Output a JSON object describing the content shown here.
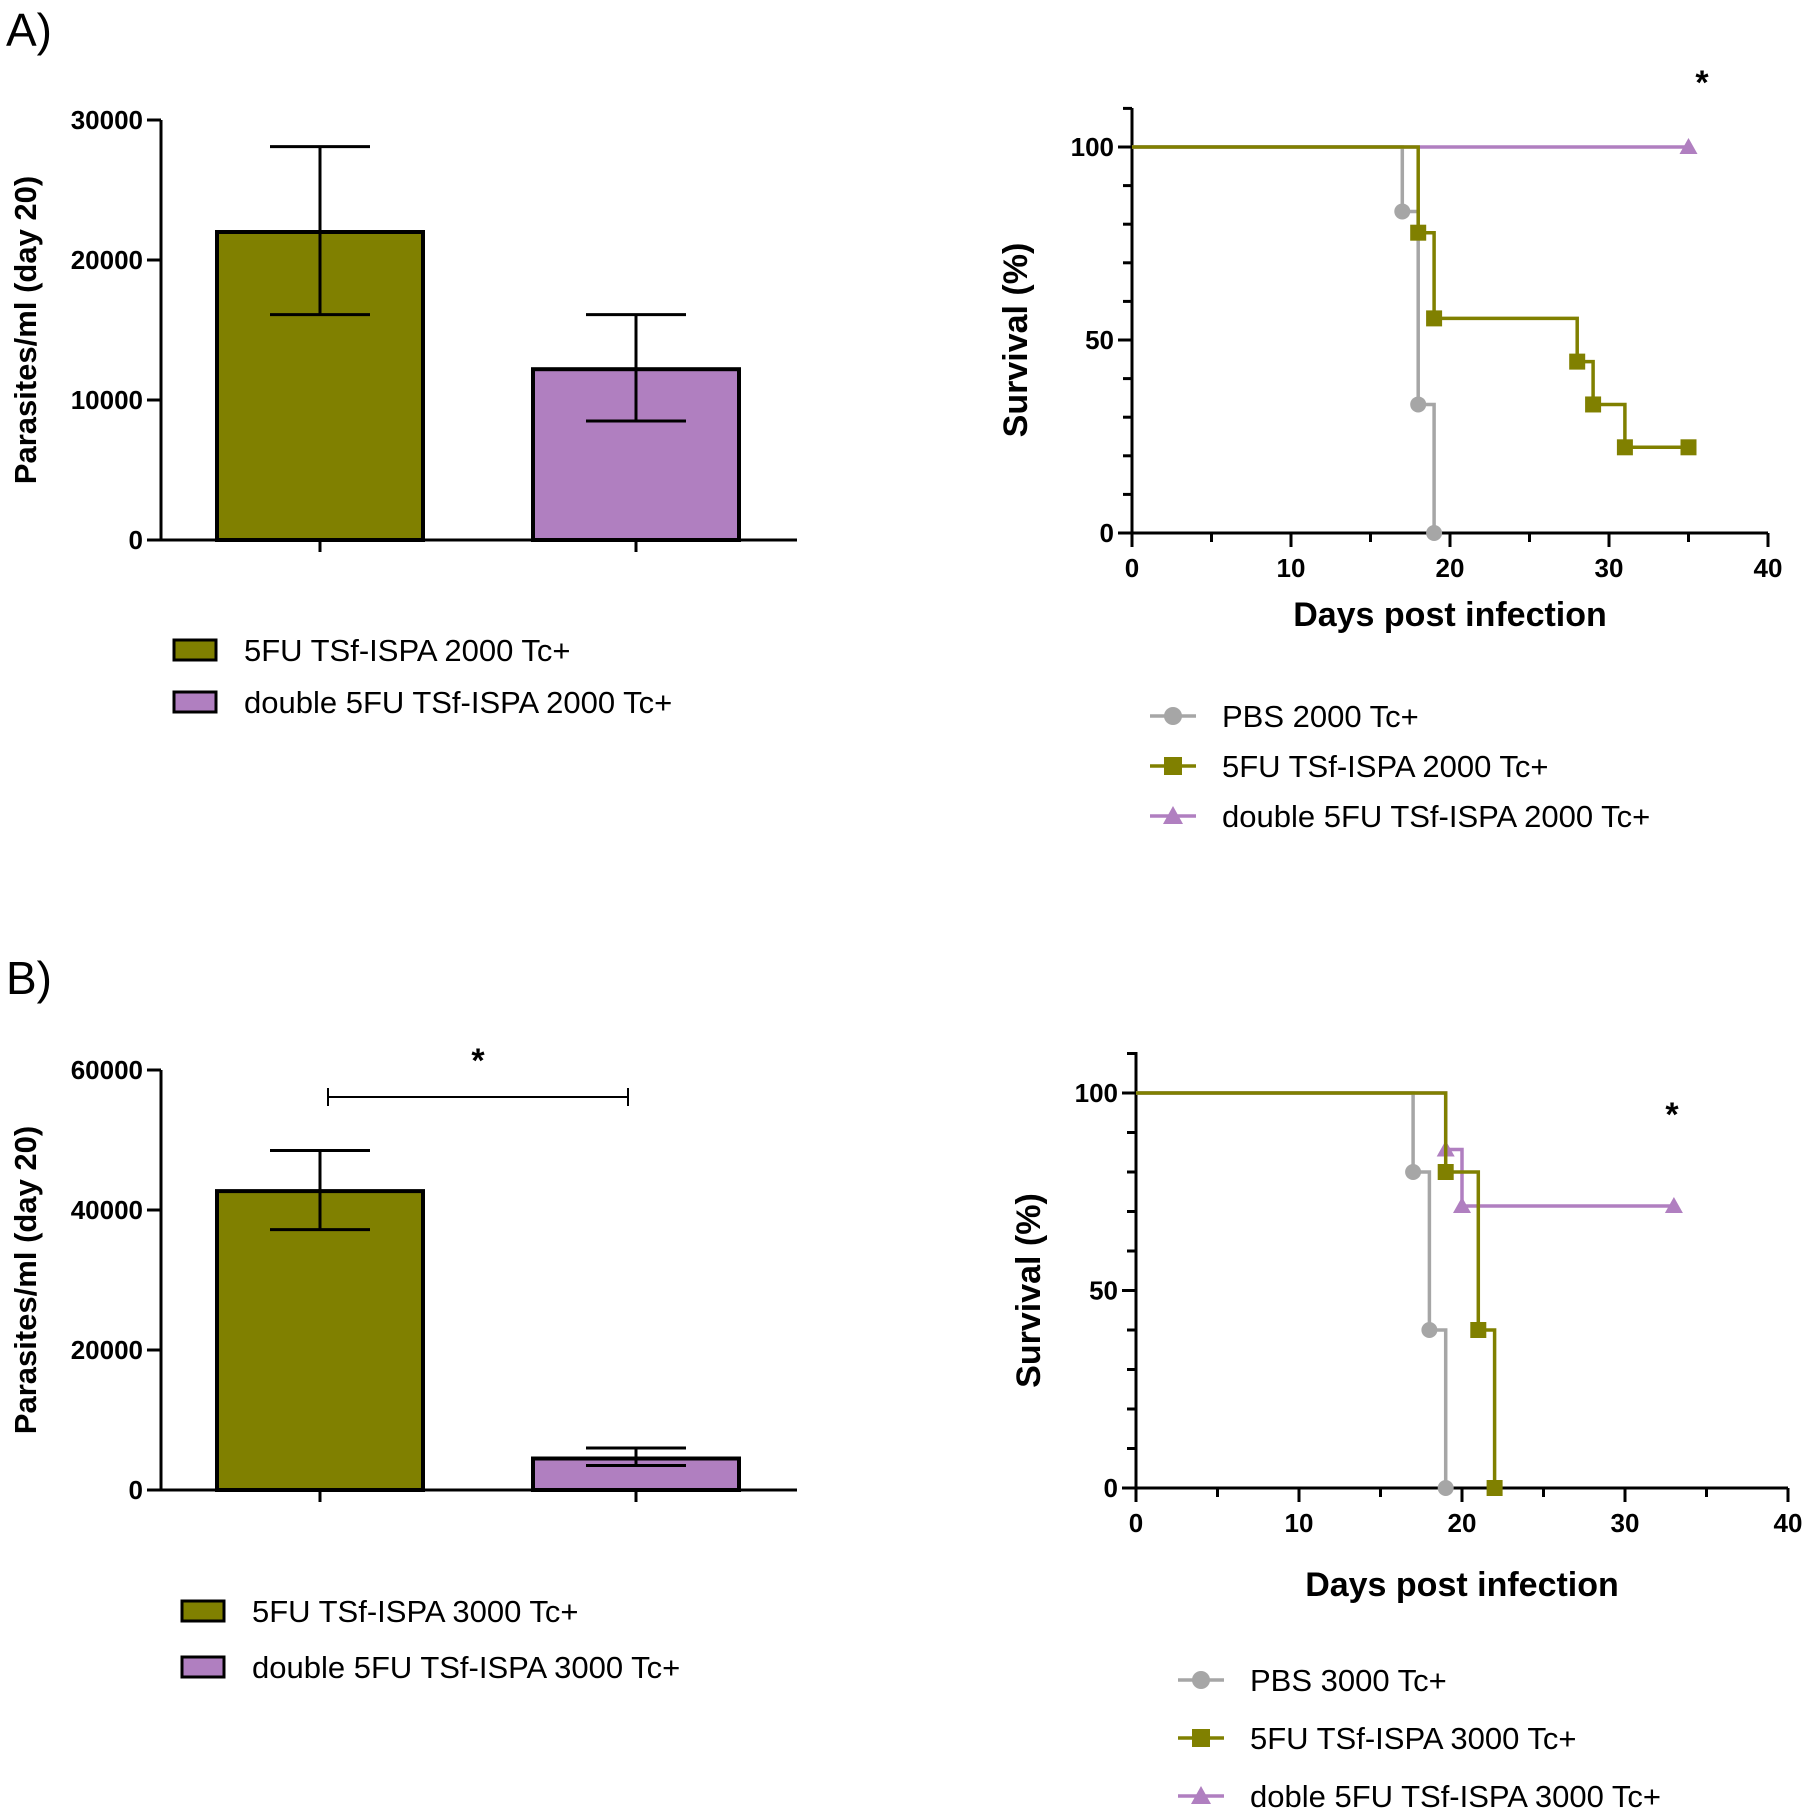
{
  "panel_labels": [
    "A)",
    "B)"
  ],
  "colors": {
    "olive": "#808000",
    "purple": "#b07fc0",
    "gray": "#a6a6a6",
    "axis": "#000000"
  },
  "chart_data": [
    {
      "id": "A-bar",
      "type": "bar",
      "ylabel": "Parasites/ml (day 20)",
      "ylim": [
        0,
        30000
      ],
      "yticks": [
        0,
        10000,
        20000,
        30000
      ],
      "series": [
        {
          "name": "5FU TSf-ISPA 2000 Tc+",
          "value": 22000,
          "err_low": 16100,
          "err_high": 28100,
          "color": "olive"
        },
        {
          "name": "double 5FU TSf-ISPA 2000 Tc+",
          "value": 12200,
          "err_low": 8500,
          "err_high": 16100,
          "color": "purple"
        }
      ],
      "significance": null,
      "legend": [
        "5FU TSf-ISPA 2000 Tc+",
        "double 5FU TSf-ISPA 2000 Tc+"
      ]
    },
    {
      "id": "A-survival",
      "type": "line",
      "subtype": "survival-step",
      "xlabel": "Days post infection",
      "ylabel": "Survival (%)",
      "xlim": [
        0,
        40
      ],
      "ylim": [
        0,
        100
      ],
      "xticks": [
        0,
        10,
        20,
        30,
        40
      ],
      "yticks": [
        0,
        50,
        100
      ],
      "annotation": "*",
      "series": [
        {
          "name": "PBS 2000 Tc+",
          "color": "gray",
          "marker": "circle",
          "steps": [
            [
              0,
              100
            ],
            [
              17,
              100
            ],
            [
              17,
              83.3
            ],
            [
              18,
              83.3
            ],
            [
              18,
              33.3
            ],
            [
              19,
              33.3
            ],
            [
              19,
              0
            ]
          ],
          "points": [
            [
              17,
              83.3
            ],
            [
              18,
              33.3
            ],
            [
              19,
              0
            ]
          ]
        },
        {
          "name": "5FU TSf-ISPA 2000 Tc+",
          "color": "olive",
          "marker": "square",
          "steps": [
            [
              0,
              100
            ],
            [
              18,
              100
            ],
            [
              18,
              77.8
            ],
            [
              19,
              77.8
            ],
            [
              19,
              55.6
            ],
            [
              28,
              55.6
            ],
            [
              28,
              44.4
            ],
            [
              29,
              44.4
            ],
            [
              29,
              33.3
            ],
            [
              31,
              33.3
            ],
            [
              31,
              22.2
            ],
            [
              35,
              22.2
            ]
          ],
          "points": [
            [
              18,
              77.8
            ],
            [
              19,
              55.6
            ],
            [
              28,
              44.4
            ],
            [
              29,
              33.3
            ],
            [
              31,
              22.2
            ],
            [
              35,
              22.2
            ]
          ]
        },
        {
          "name": "double 5FU TSf-ISPA 2000 Tc+",
          "color": "purple",
          "marker": "triangle",
          "steps": [
            [
              0,
              100
            ],
            [
              35,
              100
            ]
          ],
          "points": [
            [
              35,
              100
            ]
          ]
        }
      ],
      "legend": [
        "PBS 2000 Tc+",
        "5FU TSf-ISPA 2000 Tc+",
        "double 5FU TSf-ISPA 2000 Tc+"
      ]
    },
    {
      "id": "B-bar",
      "type": "bar",
      "ylabel": "Parasites/ml (day 20)",
      "ylim": [
        0,
        60000
      ],
      "yticks": [
        0,
        20000,
        40000,
        60000
      ],
      "series": [
        {
          "name": "5FU TSf-ISPA 3000 Tc+",
          "value": 42700,
          "err_low": 37200,
          "err_high": 48500,
          "color": "olive"
        },
        {
          "name": "double 5FU  TSf-ISPA 3000 Tc+",
          "value": 4500,
          "err_low": 3500,
          "err_high": 6000,
          "color": "purple"
        }
      ],
      "significance": "*",
      "legend": [
        "5FU TSf-ISPA 3000 Tc+",
        "double 5FU  TSf-ISPA 3000 Tc+"
      ]
    },
    {
      "id": "B-survival",
      "type": "line",
      "subtype": "survival-step",
      "xlabel": "Days post infection",
      "ylabel": "Survival (%)",
      "xlim": [
        0,
        40
      ],
      "ylim": [
        0,
        100
      ],
      "xticks": [
        0,
        10,
        20,
        30,
        40
      ],
      "yticks": [
        0,
        50,
        100
      ],
      "annotation": "*",
      "series": [
        {
          "name": "PBS 3000 Tc+",
          "color": "gray",
          "marker": "circle",
          "steps": [
            [
              0,
              100
            ],
            [
              17,
              100
            ],
            [
              17,
              80
            ],
            [
              18,
              80
            ],
            [
              18,
              40
            ],
            [
              19,
              40
            ],
            [
              19,
              0
            ]
          ],
          "points": [
            [
              17,
              80
            ],
            [
              18,
              40
            ],
            [
              19,
              0
            ]
          ]
        },
        {
          "name": "5FU TSf-ISPA 3000 Tc+",
          "color": "olive",
          "marker": "square",
          "steps": [
            [
              0,
              100
            ],
            [
              19,
              100
            ],
            [
              19,
              80
            ],
            [
              21,
              80
            ],
            [
              21,
              40
            ],
            [
              22,
              40
            ],
            [
              22,
              0
            ]
          ],
          "points": [
            [
              19,
              80
            ],
            [
              21,
              40
            ],
            [
              22,
              0
            ]
          ]
        },
        {
          "name": "doble 5FU TSf-ISPA 3000 Tc+",
          "color": "purple",
          "marker": "triangle",
          "steps": [
            [
              0,
              100
            ],
            [
              19,
              100
            ],
            [
              19,
              85.7
            ],
            [
              20,
              85.7
            ],
            [
              20,
              71.4
            ],
            [
              33,
              71.4
            ]
          ],
          "points": [
            [
              19,
              85.7
            ],
            [
              20,
              71.4
            ],
            [
              33,
              71.4
            ]
          ]
        }
      ],
      "legend": [
        "PBS 3000 Tc+",
        "5FU TSf-ISPA 3000 Tc+",
        "doble 5FU TSf-ISPA 3000 Tc+"
      ]
    }
  ]
}
